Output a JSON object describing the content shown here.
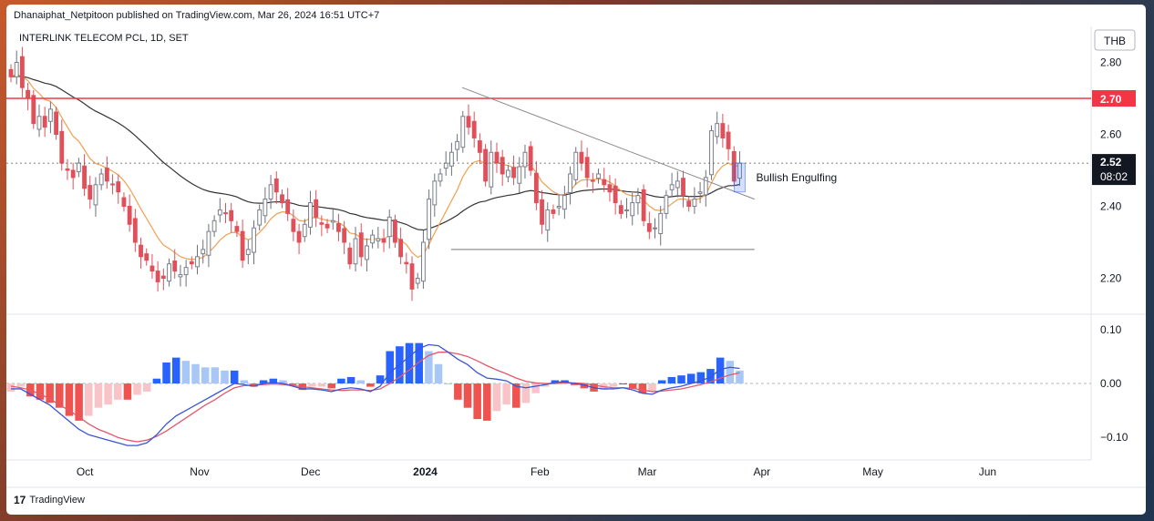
{
  "header": {
    "published": "Dhanaiphat_Netpitoon published on TradingView.com, Mar 26, 2024 16:51 UTC+7"
  },
  "footer": {
    "brand": "TradingView",
    "logo_glyph": "17"
  },
  "colors": {
    "up": "#ffffff",
    "down": "#e0505a",
    "accent_red": "#f23645",
    "ema_fast": "#f0a050",
    "ema_slow": "#333333",
    "macd_line": "#3a56d4",
    "signal_line": "#e05a6a",
    "hist_up_strong": "#2962ff",
    "hist_up_weak": "#a9c7f5",
    "hist_down_strong": "#ef5350",
    "hist_down_weak": "#f9c4c8"
  },
  "chart_data": {
    "type": "candlestick",
    "symbol_label": "INTERLINK TELECOM PCL, 1D, SET",
    "currency": "THB",
    "price_axis_ticks": [
      "2.80",
      "2.60",
      "2.40",
      "2.20"
    ],
    "price_ylim": [
      2.1,
      2.9
    ],
    "resistance_label": "2.70",
    "resistance_level": 2.7,
    "support_level": 2.28,
    "last_price": "2.52",
    "countdown": "08:02",
    "trendline": {
      "from": {
        "x": "2024-01-11",
        "y": 2.73
      },
      "to": {
        "x": "2024-03-30",
        "y": 2.42
      }
    },
    "support_line": {
      "from": "2024-01-08",
      "to": "2024-03-30"
    },
    "annotation": {
      "text": "Bullish Engulfing",
      "x": "2024-03-26",
      "y": 2.48
    },
    "x_labels": [
      "Oct",
      "Nov",
      "Dec",
      "2024",
      "Feb",
      "Mar",
      "Apr",
      "May",
      "Jun"
    ],
    "x_label_dates": [
      "2023-10-01",
      "2023-11-01",
      "2023-12-01",
      "2024-01-01",
      "2024-02-01",
      "2024-03-01",
      "2024-04-01",
      "2024-05-01",
      "2024-06-01"
    ],
    "x_range": [
      "2023-09-11",
      "2024-06-29"
    ],
    "closes": [
      2.76,
      2.8,
      2.73,
      2.7,
      2.63,
      2.65,
      2.62,
      2.67,
      2.6,
      2.52,
      2.5,
      2.48,
      2.52,
      2.45,
      2.42,
      2.46,
      2.49,
      2.47,
      2.46,
      2.44,
      2.4,
      2.35,
      2.3,
      2.26,
      2.25,
      2.22,
      2.19,
      2.2,
      2.24,
      2.22,
      2.21,
      2.23,
      2.24,
      2.26,
      2.28,
      2.33,
      2.36,
      2.39,
      2.38,
      2.36,
      2.33,
      2.25,
      2.28,
      2.34,
      2.39,
      2.42,
      2.46,
      2.44,
      2.41,
      2.38,
      2.33,
      2.3,
      2.35,
      2.41,
      2.37,
      2.35,
      2.34,
      2.36,
      2.33,
      2.3,
      2.24,
      2.31,
      2.26,
      2.29,
      2.32,
      2.31,
      2.3,
      2.37,
      2.3,
      2.26,
      2.24,
      2.17,
      2.2,
      2.3,
      2.42,
      2.47,
      2.49,
      2.52,
      2.55,
      2.58,
      2.65,
      2.62,
      2.59,
      2.55,
      2.47,
      2.55,
      2.52,
      2.49,
      2.5,
      2.48,
      2.51,
      2.55,
      2.5,
      2.41,
      2.35,
      2.39,
      2.38,
      2.4,
      2.43,
      2.49,
      2.55,
      2.52,
      2.48,
      2.47,
      2.49,
      2.46,
      2.44,
      2.41,
      2.38,
      2.39,
      2.41,
      2.43,
      2.36,
      2.33,
      2.34,
      2.38,
      2.43,
      2.46,
      2.47,
      2.43,
      2.4,
      2.42,
      2.44,
      2.48,
      2.61,
      2.63,
      2.59,
      2.56,
      2.47,
      2.52
    ],
    "macd_line": [
      -0.01,
      -0.01,
      -0.02,
      -0.03,
      -0.04,
      -0.055,
      -0.07,
      -0.085,
      -0.095,
      -0.1,
      -0.105,
      -0.11,
      -0.115,
      -0.115,
      -0.11,
      -0.095,
      -0.075,
      -0.06,
      -0.05,
      -0.04,
      -0.03,
      -0.02,
      -0.01,
      0.0,
      -0.002,
      -0.005,
      0.0,
      0.002,
      0.0,
      -0.005,
      -0.01,
      -0.01,
      -0.012,
      -0.015,
      -0.01,
      -0.008,
      -0.01,
      -0.015,
      -0.005,
      0.02,
      0.035,
      0.05,
      0.065,
      0.072,
      0.07,
      0.058,
      0.045,
      0.035,
      0.02,
      0.01,
      0.008,
      0.005,
      -0.005,
      -0.008,
      -0.005,
      -0.002,
      0.002,
      0.003,
      0.0,
      -0.003,
      -0.008,
      -0.01,
      -0.01,
      -0.008,
      -0.012,
      -0.018,
      -0.02,
      -0.012,
      -0.008,
      -0.005,
      0.0,
      0.005,
      0.012,
      0.026,
      0.03,
      0.028
    ],
    "signal_line": [
      -0.005,
      -0.008,
      -0.012,
      -0.02,
      -0.028,
      -0.04,
      -0.05,
      -0.062,
      -0.075,
      -0.085,
      -0.092,
      -0.1,
      -0.105,
      -0.108,
      -0.105,
      -0.098,
      -0.088,
      -0.076,
      -0.064,
      -0.052,
      -0.04,
      -0.03,
      -0.018,
      -0.008,
      -0.004,
      -0.003,
      -0.002,
      -0.001,
      -0.002,
      -0.004,
      -0.006,
      -0.008,
      -0.01,
      -0.012,
      -0.013,
      -0.012,
      -0.012,
      -0.013,
      -0.01,
      0.0,
      0.012,
      0.025,
      0.04,
      0.052,
      0.058,
      0.058,
      0.055,
      0.05,
      0.042,
      0.033,
      0.025,
      0.018,
      0.01,
      0.004,
      0.001,
      0.0,
      0.0,
      0.001,
      0.001,
      0.0,
      -0.003,
      -0.006,
      -0.008,
      -0.008,
      -0.009,
      -0.012,
      -0.015,
      -0.014,
      -0.012,
      -0.01,
      -0.006,
      -0.002,
      0.003,
      0.01,
      0.016,
      0.02
    ],
    "macd_axis_ticks": [
      "0.10",
      "0.00",
      "−0.10"
    ],
    "macd_ylim": [
      -0.13,
      0.12
    ]
  }
}
